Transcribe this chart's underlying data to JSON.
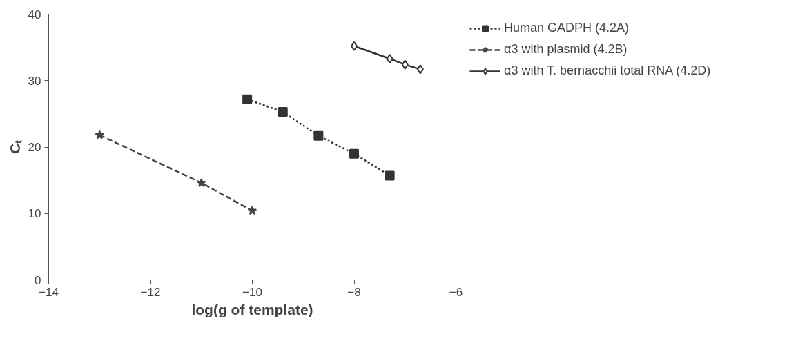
{
  "chart_data": {
    "type": "line",
    "xlabel": "log(g of template)",
    "ylabel": "Cₜ",
    "xlim": [
      -14,
      -6
    ],
    "xticks": [
      -14,
      -12,
      -10,
      -8,
      -6
    ],
    "ylim": [
      0,
      40
    ],
    "yticks": [
      0,
      10,
      20,
      30,
      40
    ],
    "grid": false,
    "legend": "right",
    "series": [
      {
        "name": "Human GADPH (4.2A)",
        "color": "#333333",
        "marker": "square",
        "line_style": "dotted",
        "x": [
          -10.1,
          -9.4,
          -8.7,
          -8.0,
          -7.3
        ],
        "values": [
          27.2,
          25.3,
          21.7,
          19.0,
          15.7
        ]
      },
      {
        "name": "α3 with plasmid (4.2B)",
        "color": "#444444",
        "marker": "star",
        "line_style": "dashed",
        "x": [
          -13,
          -11,
          -10
        ],
        "values": [
          21.8,
          14.6,
          10.4
        ]
      },
      {
        "name": "α3 with T. bernacchii total RNA (4.2D)",
        "color": "#333333",
        "marker": "diamond",
        "line_style": "solid",
        "x": [
          -8.0,
          -7.3,
          -7.0,
          -6.7
        ],
        "values": [
          35.2,
          33.3,
          32.4,
          31.7
        ]
      }
    ]
  }
}
